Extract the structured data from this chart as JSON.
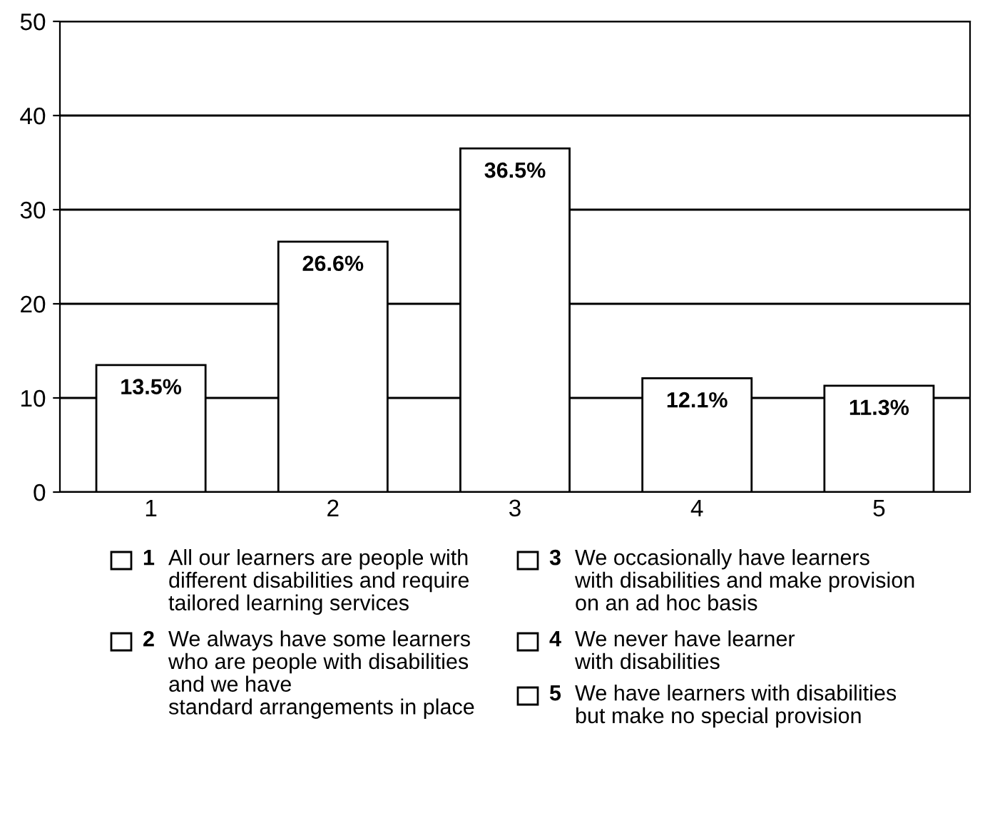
{
  "chart_data": {
    "type": "bar",
    "categories": [
      "1",
      "2",
      "3",
      "4",
      "5"
    ],
    "values": [
      13.5,
      26.6,
      36.5,
      12.1,
      11.3
    ],
    "value_labels": [
      "13.5%",
      "26.6%",
      "36.5%",
      "12.1%",
      "11.3%"
    ],
    "color": "#ffffff",
    "ylim": [
      0,
      50
    ],
    "yticks": [
      0,
      10,
      20,
      30,
      40,
      50
    ],
    "grid": "y",
    "annotations": [
      "1 All our learners are people with\ndifferent disabilities and require\ntailored learning services",
      "2 We always have some learners\nwho are people with disabilities\nand we have\nstandard arrangements in place",
      "3 We occasionally have learners\nwith disabilities and make provision\non an ad hoc basis",
      "4 We never have learner\nwith disabilities",
      "5 We have learners with disabilities\nbut make no special provision"
    ]
  }
}
